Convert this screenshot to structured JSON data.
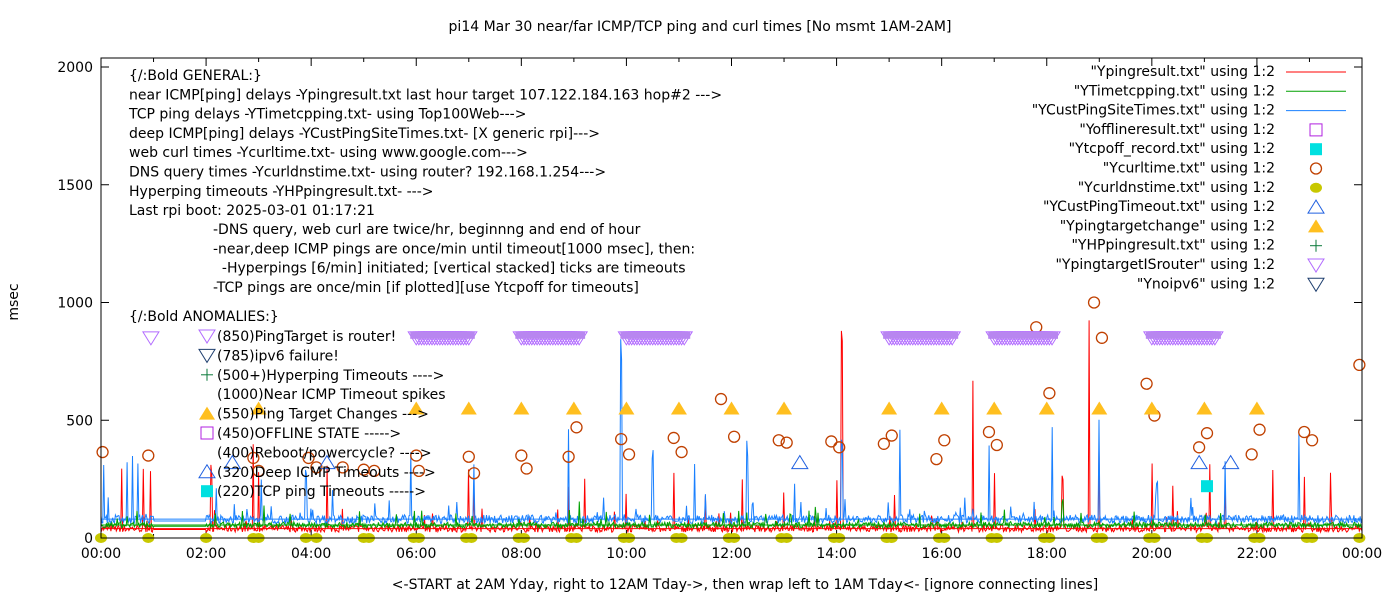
{
  "chart_data": {
    "type": "line",
    "title": "pi14 Mar 30  near/far ICMP/TCP ping and curl times [No msmt 1AM-2AM]",
    "xlabel": "<-START at 2AM Yday, right to 12AM Tday->, then wrap left to 1AM Tday<- [ignore connecting lines]",
    "ylabel": "msec",
    "xlim": [
      0,
      24
    ],
    "ylim": [
      0,
      2050
    ],
    "yticks": [
      "0",
      "500",
      "1000",
      "1500",
      "2000"
    ],
    "ytick_values": [
      0,
      500,
      1000,
      1500,
      2000
    ],
    "xticks": [
      "00:00",
      "02:00",
      "04:00",
      "06:00",
      "08:00",
      "10:00",
      "12:00",
      "14:00",
      "16:00",
      "18:00",
      "20:00",
      "22:00",
      "00:00"
    ],
    "general_notes": [
      "{/:Bold GENERAL:}",
      "near ICMP[ping] delays -Ypingresult.txt last hour target 107.122.184.163 hop#2 --->",
      "TCP ping delays -YTimetcpping.txt- using Top100Web--->",
      "deep ICMP[ping] delays -YCustPingSiteTimes.txt- [X generic rpi]--->",
      "web curl times -Ycurltime.txt- using www.google.com--->",
      "DNS query times -Ycurldnstime.txt- using router? 192.168.1.254--->",
      "Hyperping timeouts -YHPpingresult.txt- --->",
      "Last rpi boot: 2025-03-01 01:17:21"
    ],
    "notes_indented": [
      "-DNS query, web curl are twice/hr, beginnng and end of hour",
      "-near,deep ICMP pings are once/min until timeout[1000 msec], then:",
      "  -Hyperpings [6/min] initiated; [vertical stacked] ticks are timeouts",
      "-TCP pings are once/min [if plotted][use Ytcpoff for timeouts]"
    ],
    "anomalies_title": "{/:Bold ANOMALIES:}",
    "anomalies": [
      {
        "label": "(850)PingTarget is router!",
        "symbol": "tri-down-open",
        "color": "#b26bff"
      },
      {
        "label": "(785)ipv6 failure!",
        "symbol": "tri-down-open",
        "color": "#1f3f6f"
      },
      {
        "label": "(500+)Hyperping Timeouts ---->",
        "symbol": "plus",
        "color": "#0a7a3a"
      },
      {
        "label": "(1000)Near ICMP Timeout spikes",
        "symbol": "none",
        "color": "#000000"
      },
      {
        "label": "(550)Ping Target Changes --->",
        "symbol": "tri-up-filled",
        "color": "#ffbf1f"
      },
      {
        "label": "(450)OFFLINE STATE ----->",
        "symbol": "square-open",
        "color": "#b020e0"
      },
      {
        "label": "(400)Reboot/powercycle? ---->",
        "symbol": "none",
        "color": "#000000"
      },
      {
        "label": "(320)Deep ICMP Timeouts ---->",
        "symbol": "tri-up-open",
        "color": "#2060e0"
      },
      {
        "label": "(220)TCP ping Timeouts ----->",
        "symbol": "square-filled",
        "color": "#00e0e0"
      }
    ],
    "legend_position": "top-right",
    "legend": [
      {
        "label": "\"Ypingresult.txt\" using 1:2",
        "symbol": "line",
        "color": "#ff0000"
      },
      {
        "label": "\"YTimetcpping.txt\" using 1:2",
        "symbol": "line",
        "color": "#00a000"
      },
      {
        "label": "\"YCustPingSiteTimes.txt\" using 1:2",
        "symbol": "line",
        "color": "#1a80ff"
      },
      {
        "label": "\"Yofflineresult.txt\" using 1:2",
        "symbol": "square-open",
        "color": "#b020e0"
      },
      {
        "label": "\"Ytcpoff_record.txt\" using 1:2",
        "symbol": "square-filled",
        "color": "#00e0e0"
      },
      {
        "label": "\"Ycurltime.txt\" using 1:2",
        "symbol": "circle-open",
        "color": "#c04000"
      },
      {
        "label": "\"Ycurldnstime.txt\" using 1:2",
        "symbol": "circle-filled",
        "color": "#c8c800"
      },
      {
        "label": "\"YCustPingTimeout.txt\" using 1:2",
        "symbol": "tri-up-open",
        "color": "#2060e0"
      },
      {
        "label": "\"Ypingtargetchange\" using 1:2",
        "symbol": "tri-up-filled",
        "color": "#ffbf1f"
      },
      {
        "label": "\"YHPpingresult.txt\" using 1:2",
        "symbol": "plus",
        "color": "#0a7a3a"
      },
      {
        "label": "\"YpingtargetISrouter\" using 1:2",
        "symbol": "tri-down-open",
        "color": "#b26bff"
      },
      {
        "label": "\"Ynoipv6\" using 1:2",
        "symbol": "tri-down-open",
        "color": "#1f3f6f"
      }
    ],
    "series_lines": [
      {
        "name": "Ypingresult.txt",
        "color": "#ff0000",
        "baseline": 40,
        "noise": 15,
        "spikes": [
          [
            0.4,
            300
          ],
          [
            0.8,
            300
          ],
          [
            0.95,
            290
          ],
          [
            2.1,
            330
          ],
          [
            2.9,
            400
          ],
          [
            3.0,
            280
          ],
          [
            4.3,
            350
          ],
          [
            7.0,
            330
          ],
          [
            7.1,
            220
          ],
          [
            8.9,
            250
          ],
          [
            9.2,
            290
          ],
          [
            10.0,
            230
          ],
          [
            10.9,
            300
          ],
          [
            11.5,
            210
          ],
          [
            12.2,
            250
          ],
          [
            13.0,
            220
          ],
          [
            14.0,
            290
          ],
          [
            14.1,
            1000
          ],
          [
            15.1,
            220
          ],
          [
            16.6,
            790
          ],
          [
            17.0,
            320
          ],
          [
            18.3,
            300
          ],
          [
            18.8,
            1000
          ],
          [
            19.0,
            400
          ],
          [
            20.0,
            330
          ],
          [
            20.4,
            250
          ],
          [
            21.1,
            320
          ],
          [
            21.4,
            280
          ],
          [
            22.3,
            300
          ],
          [
            22.9,
            290
          ],
          [
            23.4,
            280
          ]
        ]
      },
      {
        "name": "YCustPingSiteTimes.txt",
        "color": "#1a80ff",
        "baseline": 80,
        "noise": 18,
        "spikes": [
          [
            0.05,
            350
          ],
          [
            0.5,
            370
          ],
          [
            0.6,
            380
          ],
          [
            0.7,
            360
          ],
          [
            2.2,
            250
          ],
          [
            3.05,
            280
          ],
          [
            3.9,
            300
          ],
          [
            4.4,
            250
          ],
          [
            5.9,
            450
          ],
          [
            7.1,
            370
          ],
          [
            8.9,
            470
          ],
          [
            9.9,
            940
          ],
          [
            10.5,
            420
          ],
          [
            11.3,
            360
          ],
          [
            12.3,
            420
          ],
          [
            13.2,
            280
          ],
          [
            14.1,
            470
          ],
          [
            15.2,
            460
          ],
          [
            16.9,
            480
          ],
          [
            18.1,
            520
          ],
          [
            19.0,
            520
          ],
          [
            20.1,
            260
          ],
          [
            21.4,
            350
          ],
          [
            22.8,
            460
          ]
        ]
      },
      {
        "name": "YTimetcpping.txt",
        "color": "#00a000",
        "baseline": 55,
        "noise": 12,
        "spikes": [
          [
            3.1,
            150
          ],
          [
            6.1,
            140
          ],
          [
            9.1,
            170
          ],
          [
            13.6,
            140
          ],
          [
            17.2,
            130
          ],
          [
            18.3,
            180
          ]
        ]
      }
    ],
    "curl_times": [
      [
        0.03,
        365
      ],
      [
        0.9,
        350
      ],
      [
        2.9,
        340
      ],
      [
        3.0,
        285
      ],
      [
        3.95,
        340
      ],
      [
        4.1,
        300
      ],
      [
        4.6,
        300
      ],
      [
        5.0,
        290
      ],
      [
        5.2,
        285
      ],
      [
        6.0,
        350
      ],
      [
        6.05,
        285
      ],
      [
        7.0,
        345
      ],
      [
        7.1,
        275
      ],
      [
        8.0,
        350
      ],
      [
        8.1,
        295
      ],
      [
        8.9,
        345
      ],
      [
        9.05,
        470
      ],
      [
        9.9,
        420
      ],
      [
        10.05,
        355
      ],
      [
        10.9,
        425
      ],
      [
        11.05,
        365
      ],
      [
        11.8,
        590
      ],
      [
        12.05,
        430
      ],
      [
        12.9,
        415
      ],
      [
        13.05,
        405
      ],
      [
        13.9,
        410
      ],
      [
        14.05,
        385
      ],
      [
        14.9,
        400
      ],
      [
        15.05,
        435
      ],
      [
        15.9,
        335
      ],
      [
        16.05,
        415
      ],
      [
        16.9,
        450
      ],
      [
        17.05,
        395
      ],
      [
        17.8,
        895
      ],
      [
        18.05,
        615
      ],
      [
        18.9,
        1000
      ],
      [
        19.05,
        850
      ],
      [
        19.9,
        655
      ],
      [
        20.05,
        520
      ],
      [
        20.9,
        385
      ],
      [
        21.05,
        445
      ],
      [
        21.9,
        355
      ],
      [
        22.05,
        460
      ],
      [
        22.9,
        450
      ],
      [
        23.05,
        415
      ],
      [
        23.95,
        735
      ]
    ],
    "dns_times": [
      0.0,
      0.9,
      2.0,
      2.9,
      3.0,
      3.9,
      4.1,
      5.0,
      5.1,
      5.95,
      6.05,
      6.95,
      7.05,
      7.95,
      8.05,
      8.95,
      9.05,
      9.95,
      10.05,
      10.95,
      11.05,
      11.95,
      12.05,
      12.95,
      13.05,
      13.95,
      14.05,
      14.95,
      15.05,
      15.95,
      16.05,
      16.95,
      17.05,
      17.95,
      18.05,
      18.95,
      19.05,
      19.95,
      20.05,
      20.95,
      21.05,
      21.95,
      22.05,
      22.95,
      23.05,
      23.95
    ],
    "dns_value": 0,
    "target_changes": [
      3,
      6,
      7,
      8,
      9,
      10,
      11,
      12,
      13,
      15,
      16,
      17,
      18,
      19,
      20,
      21,
      22
    ],
    "target_change_value": 550,
    "isrouter_ranges": [
      [
        0.95,
        0.95
      ],
      [
        6.0,
        7.0
      ],
      [
        8.0,
        9.1
      ],
      [
        10.0,
        11.1
      ],
      [
        15.0,
        16.2
      ],
      [
        17.0,
        18.1
      ],
      [
        20.0,
        21.2
      ]
    ],
    "isrouter_value": 850,
    "deep_timeouts": [
      2.5,
      4.3,
      13.3,
      20.9,
      21.5
    ],
    "deep_timeout_value": 320,
    "tcp_timeouts": [
      21.05
    ],
    "tcp_timeout_value": 220
  }
}
